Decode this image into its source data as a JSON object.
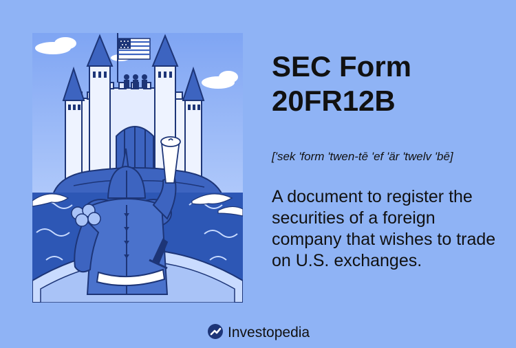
{
  "title": "SEC Form 20FR12B",
  "pronunciation": "['sek 'form 'twen-tē 'ef 'är 'twelv 'bē]",
  "definition": "A document to register the securities of a foreign company that wishes to trade on U.S. exchanges.",
  "brand": {
    "name": "Investopedia",
    "icon": "investopedia-logo-icon"
  },
  "illustration": {
    "icons": [
      "castle-icon",
      "us-flag-icon",
      "knight-icon",
      "scroll-icon",
      "boat-icon",
      "cloud-icon",
      "wave-icon"
    ]
  },
  "colors": {
    "background": "#8fb3f5",
    "text": "#111111",
    "navy": "#1d3577",
    "mid_blue": "#3d64c0",
    "light_blue": "#c9dbff"
  }
}
